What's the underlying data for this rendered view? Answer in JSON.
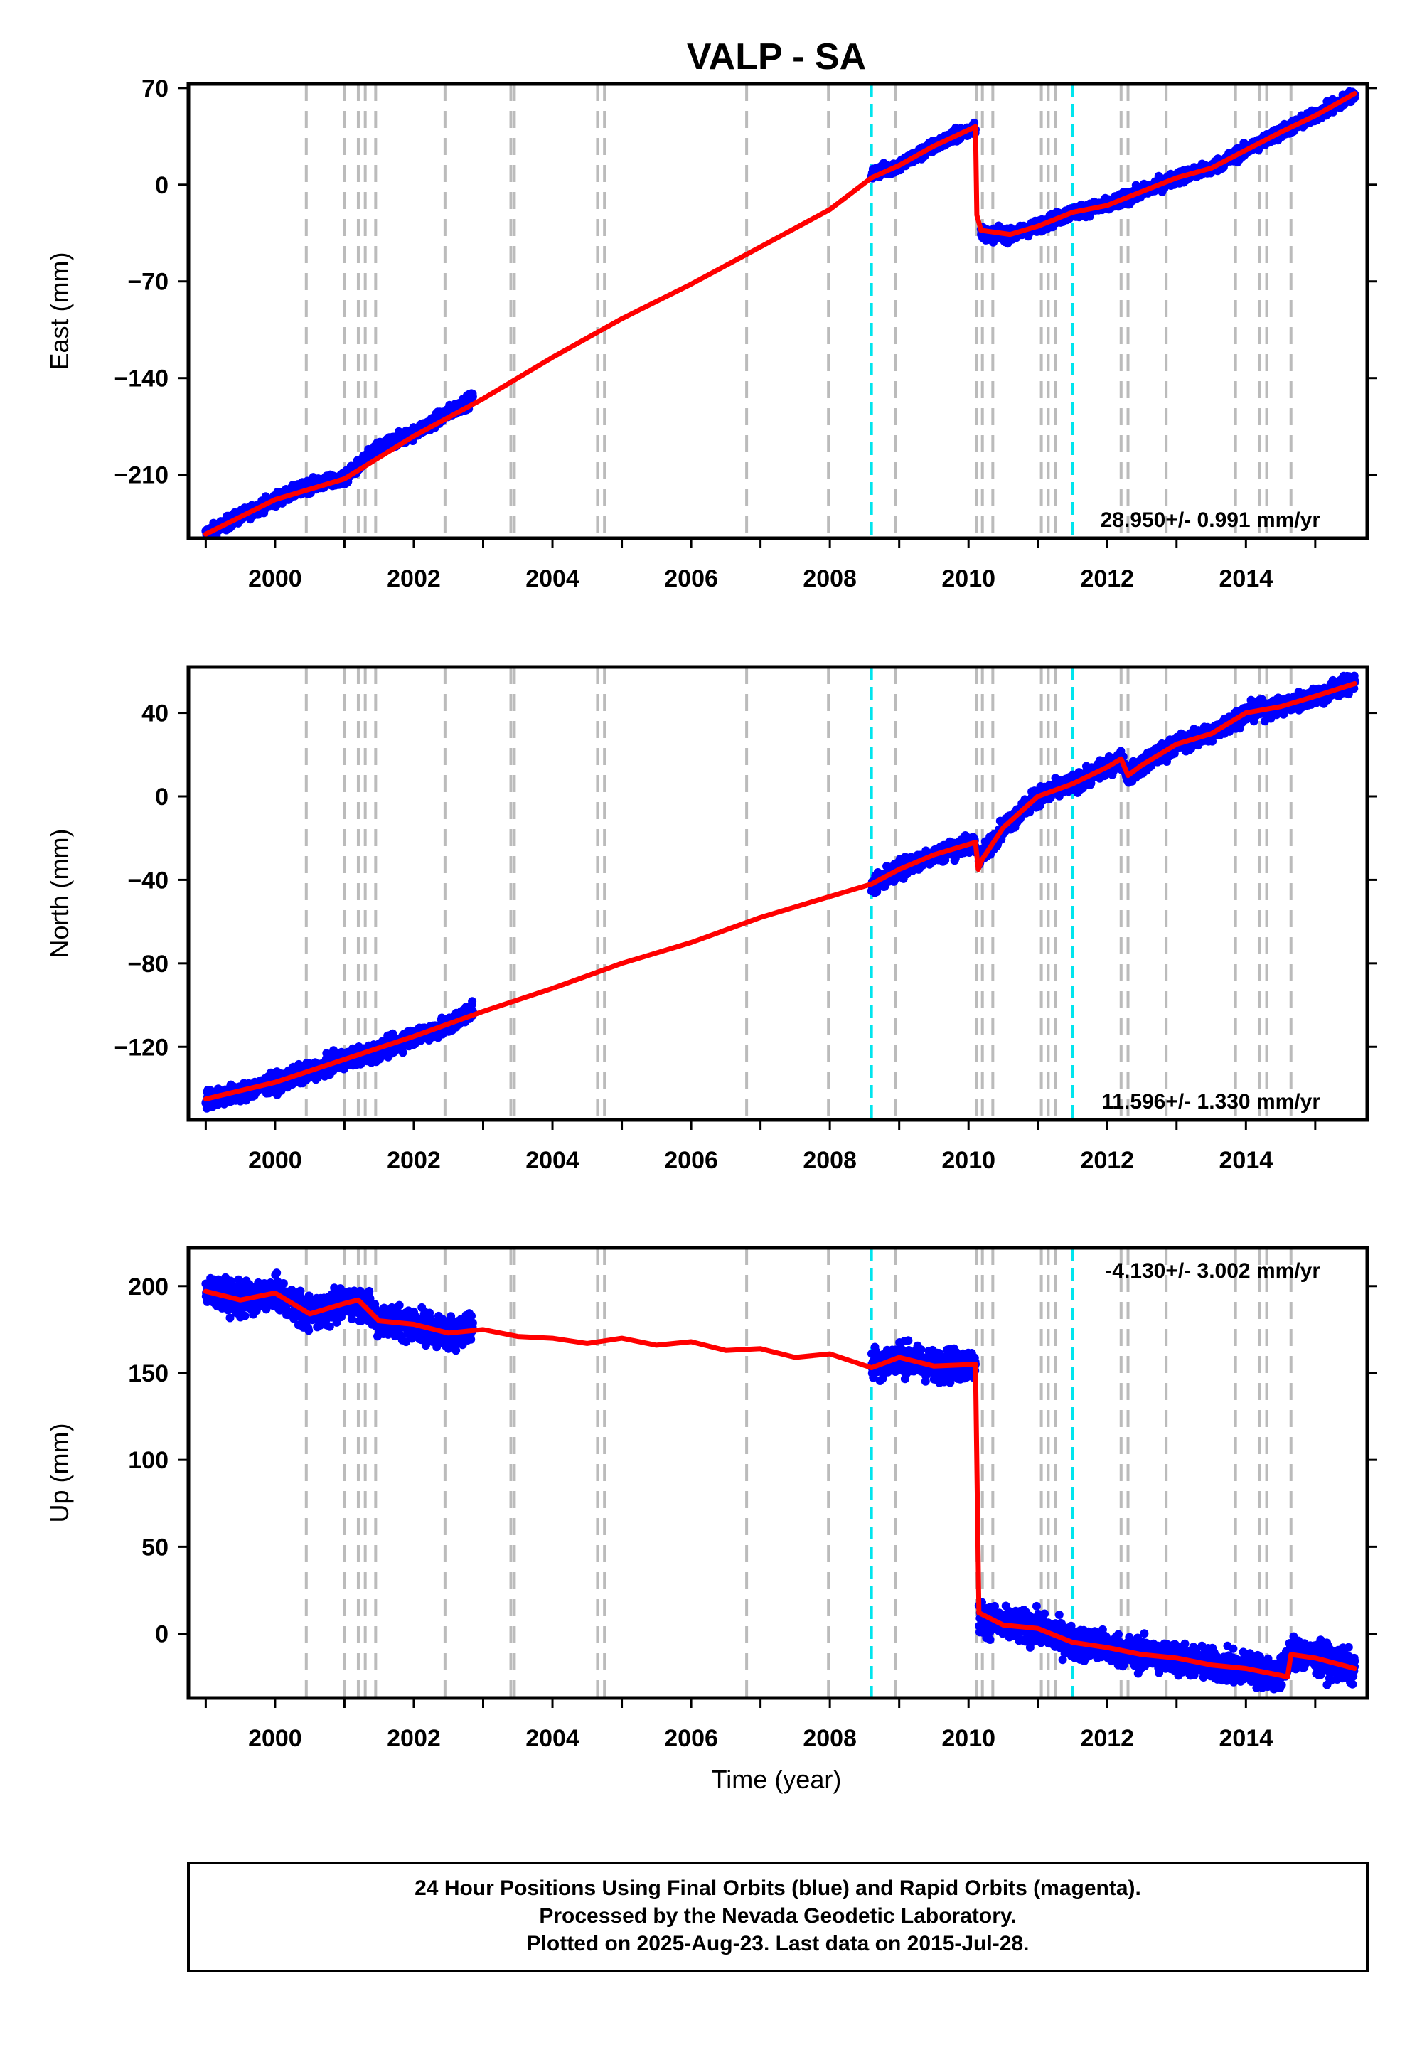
{
  "chart_data": [
    {
      "type": "scatter",
      "title": "VALP - SA",
      "xlabel": "",
      "ylabel": "East (mm)",
      "xlim": [
        1998.75,
        2015.75
      ],
      "ylim": [
        -256,
        73
      ],
      "xticks": [
        2000,
        2002,
        2004,
        2006,
        2008,
        2010,
        2012,
        2014
      ],
      "xtick_labels": [
        "2000",
        "2002",
        "2004",
        "2006",
        "2008",
        "2010",
        "2012",
        "2014"
      ],
      "yticks": [
        70,
        0,
        -70,
        -140,
        -210
      ],
      "ytick_labels": [
        "70",
        "0",
        "−70",
        "−140",
        "−210"
      ],
      "grid": false,
      "rate_label": "28.950+/- 0.991 mm/yr",
      "rate_position": "bottom-right",
      "series": [
        {
          "color": "#0000ff",
          "marker": "dot",
          "segments": [
            {
              "x": [
                1999.0,
                1999.5,
                2000.0,
                2000.5,
                2001.0,
                2001.5,
                2002.0,
                2002.5,
                2002.85
              ],
              "y": [
                -253,
                -240,
                -228,
                -218,
                -213,
                -190,
                -180,
                -165,
                -155
              ]
            },
            {
              "x": [
                2008.6,
                2009.0,
                2009.5,
                2010.1
              ],
              "y": [
                8,
                14,
                28,
                42
              ]
            },
            {
              "x": [
                2010.18,
                2010.6,
                2011.0,
                2011.5,
                2012.0,
                2012.5,
                2013.0,
                2013.5,
                2014.0,
                2014.5,
                2015.0,
                2015.57
              ],
              "y": [
                -35,
                -37,
                -30,
                -20,
                -15,
                -5,
                5,
                12,
                25,
                38,
                50,
                65
              ]
            }
          ]
        },
        {
          "color": "#ff0000",
          "marker": "line",
          "segments": [
            {
              "x": [
                1999.0,
                2000.0,
                2001.0,
                2002.0,
                2003.0,
                2004.0,
                2005.0,
                2006.0,
                2007.0,
                2008.0,
                2008.6,
                2009.0,
                2009.5,
                2010.1
              ],
              "y": [
                -253,
                -228,
                -213,
                -182,
                -155,
                -125,
                -97,
                -72,
                -45,
                -18,
                5,
                14,
                28,
                42
              ]
            },
            {
              "x": [
                2010.1,
                2010.12,
                2010.18
              ],
              "y": [
                42,
                -22,
                -33
              ]
            },
            {
              "x": [
                2010.18,
                2010.6,
                2011.0,
                2011.5,
                2012.0,
                2012.5,
                2013.0,
                2013.5,
                2014.0,
                2014.5,
                2015.0,
                2015.57
              ],
              "y": [
                -33,
                -36,
                -30,
                -20,
                -15,
                -5,
                5,
                12,
                25,
                38,
                50,
                66
              ]
            }
          ]
        }
      ],
      "event_lines_gray": [
        2000.45,
        2001.0,
        2001.2,
        2001.3,
        2001.45,
        2002.45,
        2003.4,
        2003.45,
        2004.65,
        2004.75,
        2006.8,
        2007.98,
        2008.95,
        2010.12,
        2010.2,
        2010.35,
        2011.05,
        2011.15,
        2011.25,
        2012.2,
        2012.3,
        2012.85,
        2013.85,
        2014.2,
        2014.3,
        2014.65
      ],
      "event_lines_cyan": [
        2008.6,
        2011.5
      ]
    },
    {
      "type": "scatter",
      "xlabel": "",
      "ylabel": "North (mm)",
      "xlim": [
        1998.75,
        2015.75
      ],
      "ylim": [
        -155,
        62
      ],
      "xticks": [
        2000,
        2002,
        2004,
        2006,
        2008,
        2010,
        2012,
        2014
      ],
      "xtick_labels": [
        "2000",
        "2002",
        "2004",
        "2006",
        "2008",
        "2010",
        "2012",
        "2014"
      ],
      "yticks": [
        40,
        0,
        -40,
        -80,
        -120
      ],
      "ytick_labels": [
        "40",
        "0",
        "−40",
        "−80",
        "−120"
      ],
      "grid": false,
      "rate_label": "11.596+/- 1.330 mm/yr",
      "rate_position": "bottom-right",
      "series": [
        {
          "color": "#0000ff",
          "marker": "dot",
          "segments": [
            {
              "x": [
                1999.0,
                1999.5,
                2000.0,
                2000.5,
                2001.0,
                2001.5,
                2002.0,
                2002.5,
                2002.85
              ],
              "y": [
                -145,
                -142,
                -137,
                -132,
                -126,
                -122,
                -115,
                -110,
                -102
              ]
            },
            {
              "x": [
                2008.6,
                2009.0,
                2009.5,
                2010.1
              ],
              "y": [
                -43,
                -35,
                -28,
                -22
              ]
            },
            {
              "x": [
                2010.15,
                2010.5,
                2011.0,
                2011.5,
                2012.0,
                2012.2,
                2012.3,
                2012.5,
                2013.0,
                2013.5,
                2014.0,
                2014.5,
                2015.0,
                2015.57
              ],
              "y": [
                -30,
                -15,
                0,
                6,
                14,
                18,
                10,
                15,
                25,
                30,
                40,
                43,
                48,
                55
              ]
            }
          ]
        },
        {
          "color": "#ff0000",
          "marker": "line",
          "segments": [
            {
              "x": [
                1999.0,
                2000.0,
                2001.0,
                2002.0,
                2003.0,
                2004.0,
                2005.0,
                2006.0,
                2007.0,
                2008.0,
                2008.6,
                2009.0,
                2009.5,
                2010.1
              ],
              "y": [
                -145,
                -137,
                -126,
                -115,
                -103,
                -92,
                -80,
                -70,
                -58,
                -48,
                -42,
                -35,
                -28,
                -22
              ]
            },
            {
              "x": [
                2010.1,
                2010.14,
                2010.2
              ],
              "y": [
                -22,
                -35,
                -30
              ]
            },
            {
              "x": [
                2010.2,
                2010.5,
                2011.0,
                2011.5,
                2012.0,
                2012.2,
                2012.3,
                2012.5,
                2013.0,
                2013.5,
                2014.0,
                2014.5,
                2015.0,
                2015.57
              ],
              "y": [
                -30,
                -15,
                0,
                6,
                14,
                18,
                10,
                15,
                25,
                30,
                40,
                43,
                48,
                54
              ]
            }
          ]
        }
      ],
      "event_lines_gray": [
        2000.45,
        2001.0,
        2001.2,
        2001.3,
        2001.45,
        2002.45,
        2003.4,
        2003.45,
        2004.65,
        2004.75,
        2006.8,
        2007.98,
        2008.95,
        2010.12,
        2010.2,
        2010.35,
        2011.05,
        2011.15,
        2011.25,
        2012.2,
        2012.3,
        2012.85,
        2013.85,
        2014.2,
        2014.3,
        2014.65
      ],
      "event_lines_cyan": [
        2008.6,
        2011.5
      ]
    },
    {
      "type": "scatter",
      "xlabel": "Time (year)",
      "ylabel": "Up (mm)",
      "xlim": [
        1998.75,
        2015.75
      ],
      "ylim": [
        -37,
        222
      ],
      "xticks": [
        2000,
        2002,
        2004,
        2006,
        2008,
        2010,
        2012,
        2014
      ],
      "xtick_labels": [
        "2000",
        "2002",
        "2004",
        "2006",
        "2008",
        "2010",
        "2012",
        "2014"
      ],
      "yticks": [
        200,
        150,
        100,
        50,
        0
      ],
      "ytick_labels": [
        "200",
        "150",
        "100",
        "50",
        "0"
      ],
      "grid": false,
      "rate_label": "-4.130+/- 3.002 mm/yr",
      "rate_position": "top-right",
      "series": [
        {
          "color": "#0000ff",
          "marker": "dot",
          "segments": [
            {
              "x": [
                1999.0,
                1999.5,
                2000.0,
                2000.5,
                2001.0,
                2001.2,
                2001.5,
                2002.0,
                2002.5,
                2002.85
              ],
              "y": [
                197,
                192,
                196,
                184,
                190,
                192,
                180,
                178,
                173,
                177
              ]
            },
            {
              "x": [
                2008.6,
                2009.0,
                2009.5,
                2010.1
              ],
              "y": [
                155,
                159,
                154,
                155
              ]
            },
            {
              "x": [
                2010.15,
                2010.5,
                2011.0,
                2011.5,
                2012.0,
                2012.5,
                2013.0,
                2013.5,
                2014.0,
                2014.5,
                2014.65,
                2015.0,
                2015.57
              ],
              "y": [
                10,
                5,
                3,
                -5,
                -8,
                -12,
                -14,
                -18,
                -20,
                -24,
                -10,
                -14,
                -20
              ]
            }
          ]
        },
        {
          "color": "#ff0000",
          "marker": "line",
          "segments": [
            {
              "x": [
                1999.0,
                1999.5,
                2000.0,
                2000.5,
                2001.0,
                2001.2,
                2001.5,
                2002.0,
                2002.5,
                2003.0,
                2003.5,
                2004.0,
                2004.5,
                2005.0,
                2005.5,
                2006.0,
                2006.5,
                2007.0,
                2007.5,
                2008.0,
                2008.6,
                2009.0,
                2009.5,
                2010.1
              ],
              "y": [
                197,
                192,
                196,
                184,
                190,
                192,
                180,
                178,
                173,
                175,
                171,
                170,
                167,
                170,
                166,
                168,
                163,
                164,
                159,
                161,
                153,
                159,
                154,
                155
              ]
            },
            {
              "x": [
                2010.1,
                2010.15
              ],
              "y": [
                155,
                12
              ]
            },
            {
              "x": [
                2010.15,
                2010.5,
                2011.0,
                2011.5,
                2012.0,
                2012.5,
                2013.0,
                2013.5,
                2014.0,
                2014.5,
                2014.6,
                2014.65,
                2015.0,
                2015.57
              ],
              "y": [
                12,
                5,
                3,
                -5,
                -8,
                -12,
                -14,
                -18,
                -20,
                -24,
                -25,
                -12,
                -14,
                -20
              ]
            }
          ]
        }
      ],
      "event_lines_gray": [
        2000.45,
        2001.0,
        2001.2,
        2001.3,
        2001.45,
        2002.45,
        2003.4,
        2003.45,
        2004.65,
        2004.75,
        2006.8,
        2007.98,
        2008.95,
        2010.12,
        2010.2,
        2010.35,
        2011.05,
        2011.15,
        2011.25,
        2012.2,
        2012.3,
        2012.85,
        2013.85,
        2014.2,
        2014.3,
        2014.65
      ],
      "event_lines_cyan": [
        2008.6,
        2011.5
      ]
    }
  ],
  "footer": {
    "line1": "24 Hour Positions Using Final Orbits (blue) and Rapid Orbits (magenta).",
    "line2": "Processed by the Nevada Geodetic Laboratory.",
    "line3": "Plotted on 2025-Aug-23. Last data on 2015-Jul-28."
  },
  "colors": {
    "final_orbit_points": "#0000ff",
    "model_fit": "#ff0000",
    "event_gray": "#bbbbbb",
    "event_cyan": "#00e5ee",
    "frame": "#000000"
  }
}
